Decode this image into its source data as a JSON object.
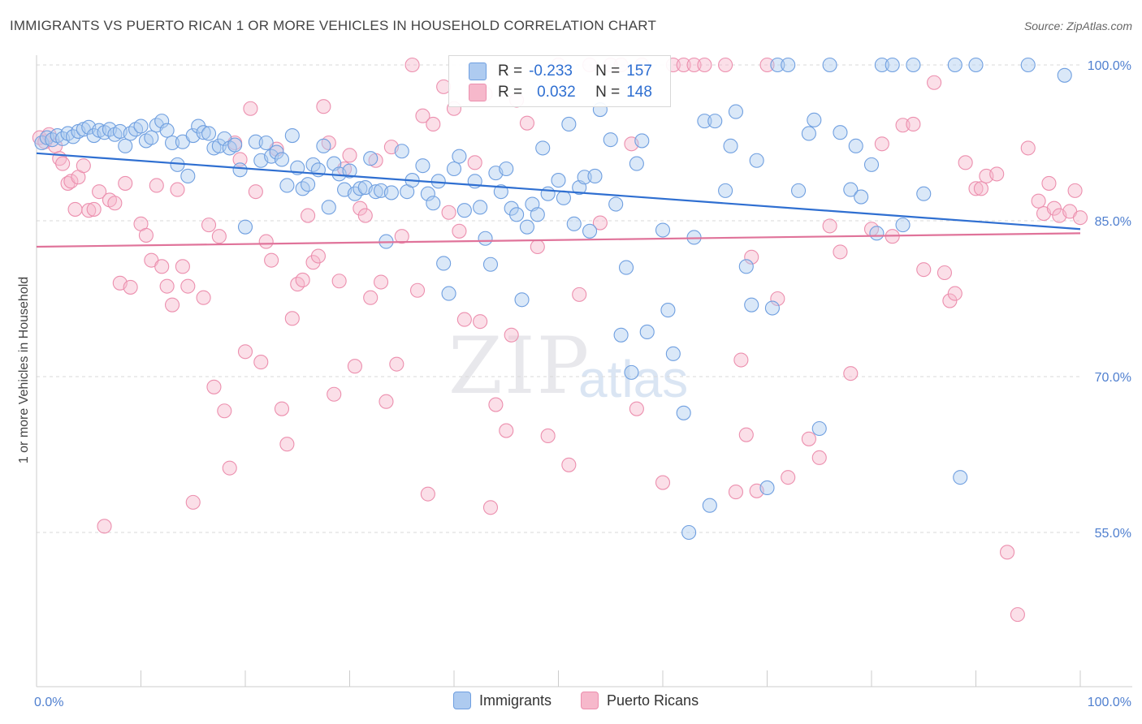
{
  "title": "IMMIGRANTS VS PUERTO RICAN 1 OR MORE VEHICLES IN HOUSEHOLD CORRELATION CHART",
  "source": "Source: ZipAtlas.com",
  "watermark": {
    "zip": "ZIP",
    "atlas": "atlas"
  },
  "legend_box": {
    "rows": [
      {
        "r_label": "R =",
        "r_value": "-0.233",
        "n_label": "N =",
        "n_value": "157",
        "color": "#aecbf0"
      },
      {
        "r_label": "R =",
        "r_value": "0.032",
        "n_label": "N =",
        "n_value": "148",
        "color": "#f6b8cb"
      }
    ]
  },
  "legend_bottom": [
    {
      "label": "Immigrants",
      "color": "#aecbf0"
    },
    {
      "label": "Puerto Ricans",
      "color": "#f6b8cb"
    }
  ],
  "colors": {
    "blue_line": "#2f6fd1",
    "pink_line": "#e0739a",
    "blue_point": "#6f9fe0",
    "pink_point": "#ec8fae",
    "tick": "#4f7fcf",
    "grid": "#d9d9d9"
  },
  "chart_data": {
    "type": "scatter",
    "title": "IMMIGRANTS VS PUERTO RICAN 1 OR MORE VEHICLES IN HOUSEHOLD CORRELATION CHART",
    "xlabel": "",
    "ylabel": "1 or more Vehicles in Household",
    "xlim": [
      0,
      100
    ],
    "ylim": [
      40,
      101
    ],
    "x_tick_labels": [
      "0.0%",
      "100.0%"
    ],
    "y_ticks": [
      55,
      70,
      85,
      100
    ],
    "y_tick_labels": [
      "55.0%",
      "70.0%",
      "85.0%",
      "100.0%"
    ],
    "grid": true,
    "series": [
      {
        "name": "Immigrants",
        "trend": {
          "x": [
            0,
            100
          ],
          "y": [
            91.5,
            84.2
          ]
        },
        "points": [
          [
            0.5,
            92.5
          ],
          [
            1,
            93
          ],
          [
            1.5,
            92.8
          ],
          [
            2,
            93.2
          ],
          [
            2.5,
            92.9
          ],
          [
            3,
            93.4
          ],
          [
            3.5,
            93.1
          ],
          [
            4,
            93.6
          ],
          [
            4.5,
            93.8
          ],
          [
            5,
            94
          ],
          [
            5.5,
            93.2
          ],
          [
            6,
            93.7
          ],
          [
            6.5,
            93.5
          ],
          [
            7,
            93.8
          ],
          [
            7.5,
            93.3
          ],
          [
            8,
            93.6
          ],
          [
            8.5,
            92.2
          ],
          [
            9,
            93.4
          ],
          [
            9.5,
            93.8
          ],
          [
            10,
            94.1
          ],
          [
            10.5,
            92.7
          ],
          [
            11,
            93
          ],
          [
            11.5,
            94.2
          ],
          [
            12,
            94.6
          ],
          [
            12.5,
            93.7
          ],
          [
            13,
            92.5
          ],
          [
            13.5,
            90.4
          ],
          [
            14,
            92.6
          ],
          [
            14.5,
            89.3
          ],
          [
            15,
            93.2
          ],
          [
            15.5,
            94.1
          ],
          [
            16,
            93.5
          ],
          [
            16.5,
            93.4
          ],
          [
            17,
            92
          ],
          [
            17.5,
            92.2
          ],
          [
            18,
            92.9
          ],
          [
            18.5,
            92
          ],
          [
            19,
            92.3
          ],
          [
            19.5,
            89.9
          ],
          [
            20,
            84.4
          ],
          [
            21,
            92.6
          ],
          [
            21.5,
            90.8
          ],
          [
            22,
            92.5
          ],
          [
            22.5,
            91.2
          ],
          [
            23,
            91.6
          ],
          [
            23.5,
            90.9
          ],
          [
            24,
            88.4
          ],
          [
            24.5,
            93.2
          ],
          [
            25,
            90.1
          ],
          [
            25.5,
            88.1
          ],
          [
            26,
            88.5
          ],
          [
            26.5,
            90.4
          ],
          [
            27,
            89.9
          ],
          [
            27.5,
            92.2
          ],
          [
            28,
            86.3
          ],
          [
            28.5,
            90.5
          ],
          [
            29,
            89.5
          ],
          [
            29.5,
            88
          ],
          [
            30,
            89.8
          ],
          [
            30.5,
            87.6
          ],
          [
            31,
            88.1
          ],
          [
            31.5,
            88.2
          ],
          [
            32,
            91
          ],
          [
            32.5,
            87.8
          ],
          [
            33,
            87.9
          ],
          [
            33.5,
            83
          ],
          [
            34,
            87.7
          ],
          [
            35,
            91.7
          ],
          [
            35.5,
            87.8
          ],
          [
            36,
            88.9
          ],
          [
            37,
            90.3
          ],
          [
            37.5,
            87.6
          ],
          [
            38,
            86.7
          ],
          [
            38.5,
            88.8
          ],
          [
            39,
            80.9
          ],
          [
            39.5,
            78
          ],
          [
            40,
            90
          ],
          [
            40.5,
            91.2
          ],
          [
            41,
            86
          ],
          [
            42,
            88.8
          ],
          [
            42.5,
            86.3
          ],
          [
            43,
            83.3
          ],
          [
            43.5,
            80.8
          ],
          [
            44,
            89.6
          ],
          [
            44.5,
            87.8
          ],
          [
            45,
            90
          ],
          [
            45.5,
            86.2
          ],
          [
            46,
            85.6
          ],
          [
            46.5,
            77.4
          ],
          [
            47,
            84.4
          ],
          [
            47.5,
            86.6
          ],
          [
            48,
            85.6
          ],
          [
            48.5,
            92
          ],
          [
            49,
            87.6
          ],
          [
            50,
            88.9
          ],
          [
            50.5,
            87.2
          ],
          [
            51,
            94.3
          ],
          [
            51.5,
            84.7
          ],
          [
            52,
            88.2
          ],
          [
            52.5,
            89.2
          ],
          [
            53,
            84
          ],
          [
            53.5,
            89.3
          ],
          [
            54,
            95.7
          ],
          [
            55,
            92.8
          ],
          [
            55.5,
            86.6
          ],
          [
            56,
            74
          ],
          [
            56.5,
            80.5
          ],
          [
            57,
            70.4
          ],
          [
            57.5,
            90.5
          ],
          [
            58,
            92.7
          ],
          [
            58.5,
            74.3
          ],
          [
            60,
            84.1
          ],
          [
            60.5,
            76.4
          ],
          [
            61,
            72.2
          ],
          [
            62,
            66.5
          ],
          [
            62.5,
            55
          ],
          [
            63,
            83.4
          ],
          [
            64,
            94.6
          ],
          [
            64.5,
            57.6
          ],
          [
            65,
            94.6
          ],
          [
            66,
            87.9
          ],
          [
            66.5,
            92.2
          ],
          [
            67,
            95.5
          ],
          [
            68,
            80.6
          ],
          [
            68.5,
            76.9
          ],
          [
            69,
            90.8
          ],
          [
            70,
            59.3
          ],
          [
            70.5,
            76.6
          ],
          [
            71,
            100
          ],
          [
            72,
            100
          ],
          [
            73,
            87.9
          ],
          [
            74,
            93.4
          ],
          [
            74.5,
            94.7
          ],
          [
            75,
            65
          ],
          [
            76,
            100
          ],
          [
            77,
            93.5
          ],
          [
            78,
            88
          ],
          [
            78.5,
            92.2
          ],
          [
            79,
            87.3
          ],
          [
            80,
            90.4
          ],
          [
            80.5,
            83.8
          ],
          [
            81,
            100
          ],
          [
            82,
            100
          ],
          [
            83,
            84.6
          ],
          [
            84,
            100
          ],
          [
            85,
            87.6
          ],
          [
            88,
            100
          ],
          [
            88.5,
            60.3
          ],
          [
            90,
            100
          ],
          [
            95,
            100
          ],
          [
            98.5,
            99
          ]
        ]
      },
      {
        "name": "Puerto Ricans",
        "trend": {
          "x": [
            0,
            100
          ],
          "y": [
            82.5,
            83.8
          ]
        },
        "points": [
          [
            0.3,
            93
          ],
          [
            0.8,
            92.6
          ],
          [
            1.2,
            93.3
          ],
          [
            1.8,
            92.2
          ],
          [
            2.2,
            91
          ],
          [
            2.5,
            90.5
          ],
          [
            3,
            88.6
          ],
          [
            3.3,
            88.8
          ],
          [
            3.7,
            86.1
          ],
          [
            4,
            89.2
          ],
          [
            4.5,
            90.3
          ],
          [
            5,
            86
          ],
          [
            5.5,
            86.1
          ],
          [
            6,
            87.8
          ],
          [
            6.5,
            55.6
          ],
          [
            7,
            87
          ],
          [
            7.5,
            86.7
          ],
          [
            8,
            79
          ],
          [
            8.5,
            88.6
          ],
          [
            9,
            78.6
          ],
          [
            10,
            84.7
          ],
          [
            10.5,
            83.6
          ],
          [
            11,
            81.2
          ],
          [
            11.5,
            88.4
          ],
          [
            12,
            80.6
          ],
          [
            12.5,
            78.7
          ],
          [
            13,
            76.9
          ],
          [
            13.5,
            88
          ],
          [
            14,
            80.6
          ],
          [
            14.5,
            78.7
          ],
          [
            15,
            57.9
          ],
          [
            16,
            77.6
          ],
          [
            16.5,
            84.6
          ],
          [
            17,
            69
          ],
          [
            17.5,
            83.5
          ],
          [
            18,
            66.7
          ],
          [
            18.5,
            61.2
          ],
          [
            19,
            92.5
          ],
          [
            19.5,
            90.9
          ],
          [
            20,
            72.4
          ],
          [
            20.5,
            95.8
          ],
          [
            21,
            87.8
          ],
          [
            21.5,
            71.4
          ],
          [
            22,
            83
          ],
          [
            22.5,
            81.2
          ],
          [
            23,
            91.9
          ],
          [
            23.5,
            66.9
          ],
          [
            24,
            63.5
          ],
          [
            24.5,
            75.6
          ],
          [
            25,
            78.9
          ],
          [
            25.5,
            79.3
          ],
          [
            26,
            85.5
          ],
          [
            26.5,
            81
          ],
          [
            27,
            81.6
          ],
          [
            27.5,
            96
          ],
          [
            28,
            92.5
          ],
          [
            28.5,
            68.3
          ],
          [
            29,
            79.2
          ],
          [
            29.5,
            90
          ],
          [
            30,
            91.3
          ],
          [
            30.5,
            71
          ],
          [
            31,
            86.2
          ],
          [
            31.5,
            85.5
          ],
          [
            32,
            77.6
          ],
          [
            32.5,
            90.8
          ],
          [
            33,
            79.1
          ],
          [
            33.5,
            67.6
          ],
          [
            34,
            92.1
          ],
          [
            34.5,
            71.2
          ],
          [
            35,
            83.5
          ],
          [
            36,
            100
          ],
          [
            36.5,
            78.3
          ],
          [
            37,
            95.1
          ],
          [
            37.5,
            58.7
          ],
          [
            38,
            94.3
          ],
          [
            39,
            97.9
          ],
          [
            39.5,
            85.8
          ],
          [
            40,
            95.8
          ],
          [
            40.5,
            84
          ],
          [
            41,
            75.5
          ],
          [
            42,
            90.6
          ],
          [
            42.5,
            75.3
          ],
          [
            43,
            97.2
          ],
          [
            43.5,
            57.4
          ],
          [
            44,
            67.3
          ],
          [
            45,
            64.8
          ],
          [
            45.5,
            74
          ],
          [
            46,
            96.6
          ],
          [
            47,
            94.4
          ],
          [
            48,
            82.5
          ],
          [
            49,
            64.3
          ],
          [
            50,
            100
          ],
          [
            51,
            61.5
          ],
          [
            52,
            77.9
          ],
          [
            53,
            100
          ],
          [
            54,
            84.8
          ],
          [
            55,
            100
          ],
          [
            56,
            100
          ],
          [
            57,
            92.4
          ],
          [
            57.5,
            66.9
          ],
          [
            58,
            100
          ],
          [
            60,
            59.8
          ],
          [
            61,
            100
          ],
          [
            62,
            100
          ],
          [
            63,
            100
          ],
          [
            64,
            100
          ],
          [
            66,
            100
          ],
          [
            67,
            58.9
          ],
          [
            67.5,
            71.6
          ],
          [
            68,
            64.4
          ],
          [
            68.5,
            81.5
          ],
          [
            69,
            59
          ],
          [
            70,
            100
          ],
          [
            71,
            77.5
          ],
          [
            72,
            60.3
          ],
          [
            74,
            64
          ],
          [
            75,
            62.2
          ],
          [
            76,
            84.5
          ],
          [
            77,
            82
          ],
          [
            78,
            70.3
          ],
          [
            80,
            84.2
          ],
          [
            81,
            92.4
          ],
          [
            82,
            83.5
          ],
          [
            83,
            94.2
          ],
          [
            84,
            94.3
          ],
          [
            85,
            80.3
          ],
          [
            86,
            98.3
          ],
          [
            87,
            80
          ],
          [
            87.5,
            77.3
          ],
          [
            88,
            78
          ],
          [
            89,
            90.6
          ],
          [
            90,
            88.1
          ],
          [
            90.5,
            88.1
          ],
          [
            91,
            89.3
          ],
          [
            92,
            89.5
          ],
          [
            93,
            53.1
          ],
          [
            94,
            47.1
          ],
          [
            95,
            92
          ],
          [
            96,
            86.9
          ],
          [
            96.5,
            85.7
          ],
          [
            97,
            88.6
          ],
          [
            97.5,
            86.2
          ],
          [
            98,
            85.5
          ],
          [
            99,
            85.9
          ],
          [
            99.5,
            87.9
          ],
          [
            100,
            85.3
          ]
        ]
      }
    ]
  }
}
